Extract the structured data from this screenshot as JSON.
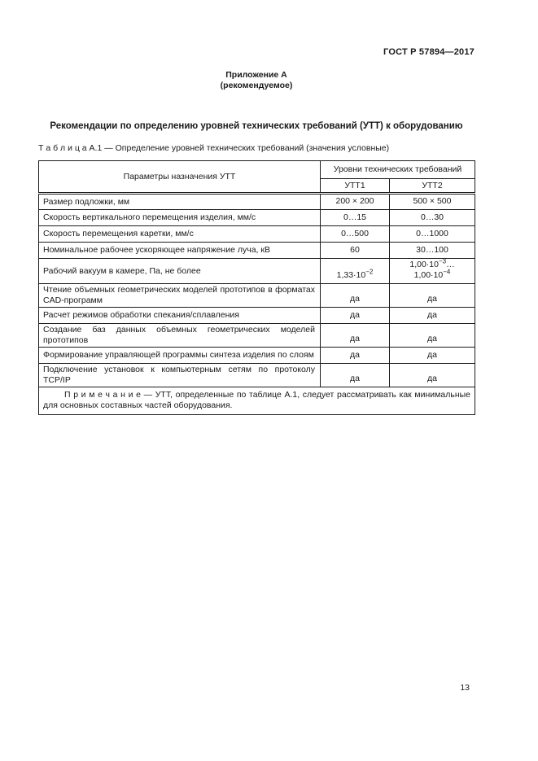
{
  "page": {
    "doc_ref": "ГОСТ Р 57894—2017",
    "appendix_title": "Приложение А",
    "appendix_subtitle": "(рекомендуемое)",
    "section_title": "Рекомендации по определению уровней технических требований (УТТ) к оборудованию",
    "table_caption": "Т а б л и ц а   А.1 — Определение уровней технических требований (значения условные)",
    "page_number": "13"
  },
  "table": {
    "header": {
      "param_col": "Параметры назначения УТТ",
      "levels_group": "Уровни технических требований",
      "level_cols": [
        "УТТ1",
        "УТТ2"
      ]
    },
    "rows": [
      {
        "param": "Размер подложки, мм",
        "utt1": "200 × 200",
        "utt2": "500 × 500"
      },
      {
        "param": "Скорость вертикального перемещения изделия, мм/с",
        "utt1": "0…15",
        "utt2": "0…30"
      },
      {
        "param": "Скорость перемещения каретки, мм/с",
        "utt1": "0…500",
        "utt2": "0…1000"
      },
      {
        "param": "Номинальное рабочее ускоряющее напряжение луча, кВ",
        "utt1": "60",
        "utt2": "30…100"
      },
      {
        "param": "Рабочий вакуум в камере, Па, не более",
        "utt1": "1,33·10^{−2}",
        "utt2": "1,00·10^{−3}…1,00·10^{−4}"
      },
      {
        "param": "Чтение объемных геометрических моделей прототипов в форматах CAD-программ",
        "utt1": "да",
        "utt2": "да"
      },
      {
        "param": "Расчет режимов обработки спекания/сплавления",
        "utt1": "да",
        "utt2": "да"
      },
      {
        "param": "Создание баз данных объемных геометрических моделей прототипов",
        "utt1": "да",
        "utt2": "да"
      },
      {
        "param": "Формирование управляющей программы синтеза изделия по слоям",
        "utt1": "да",
        "utt2": "да"
      },
      {
        "param": "Подключение установок к компьютерным сетям по протоколу TCP/IP",
        "utt1": "да",
        "utt2": "да"
      }
    ],
    "note_label": "П р и м е ч а н и е ",
    "note_text": "— УТТ, определенные по таблице А.1, следует рассматривать как минимальные для основных составных частей оборудования."
  }
}
